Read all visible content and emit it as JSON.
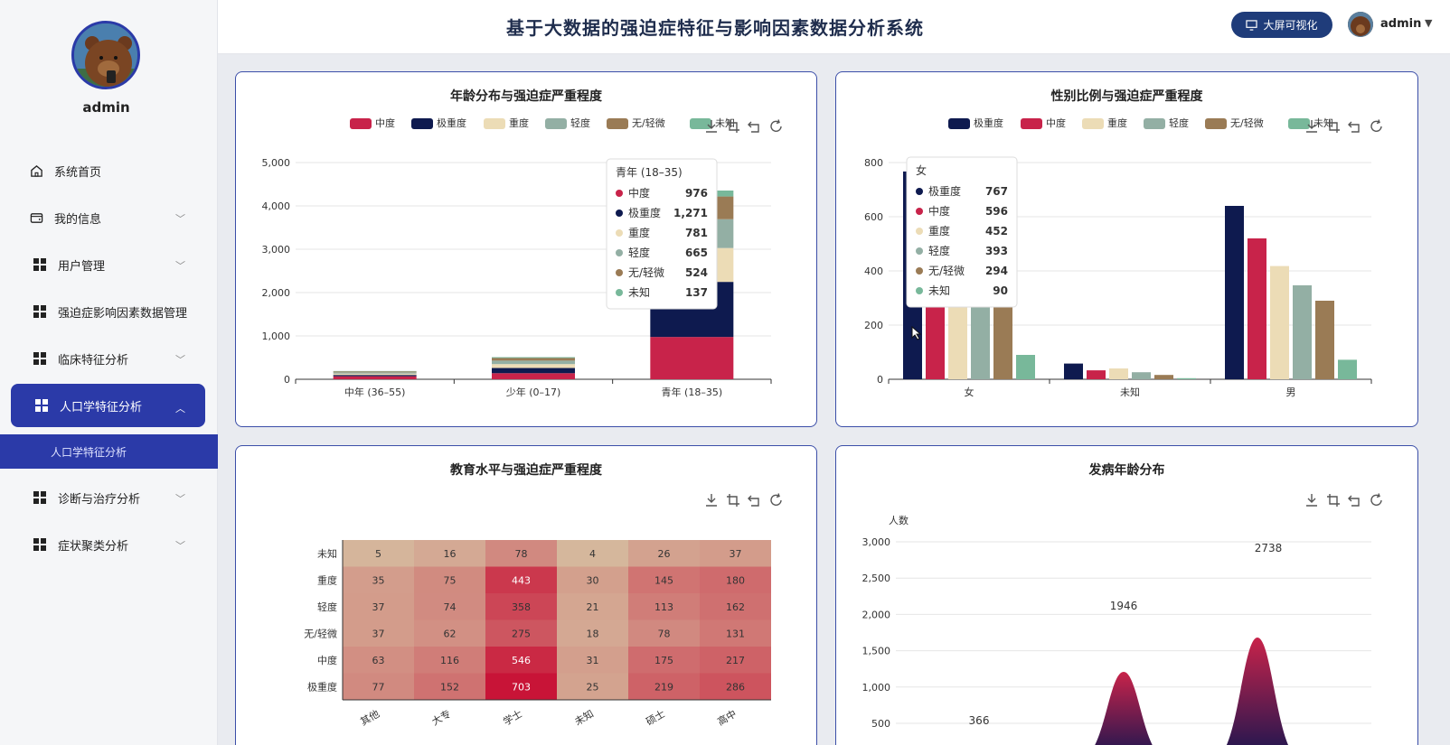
{
  "header": {
    "title": "基于大数据的强迫症特征与影响因素数据分析系统",
    "screen_button": "大屏可视化",
    "user": "admin"
  },
  "sidebar": {
    "user": "admin",
    "items": [
      {
        "label": "系统首页",
        "icon": "home-icon",
        "has_children": false
      },
      {
        "label": "我的信息",
        "icon": "wallet-icon",
        "has_children": true
      },
      {
        "label": "用户管理",
        "icon": "grid-icon",
        "has_children": true
      },
      {
        "label": "强迫症影响因素数据管理",
        "icon": "grid-icon",
        "has_children": false
      },
      {
        "label": "临床特征分析",
        "icon": "grid-icon",
        "has_children": true
      },
      {
        "label": "人口学特征分析",
        "icon": "grid-icon",
        "has_children": true,
        "active": true
      },
      {
        "label": "诊断与治疗分析",
        "icon": "grid-icon",
        "has_children": true
      },
      {
        "label": "症状聚类分析",
        "icon": "grid-icon",
        "has_children": true
      }
    ],
    "submenu_label": "人口学特征分析"
  },
  "colors": {
    "中度": "#c8234a",
    "极重度": "#0e1a4f",
    "重度": "#ecdcb6",
    "轻度": "#93afa4",
    "无/轻微": "#9a7b55",
    "未知": "#78b89a",
    "accent": "#2b3aa8"
  },
  "chart_data": [
    {
      "id": "age",
      "title": "年龄分布与强迫症严重程度",
      "type": "bar",
      "stacked": true,
      "legend": [
        "中度",
        "极重度",
        "重度",
        "轻度",
        "无/轻微",
        "未知"
      ],
      "categories": [
        "中年 (36–55)",
        "少年 (0–17)",
        "青年 (18–35)"
      ],
      "series": [
        {
          "name": "中度",
          "values": [
            70,
            140,
            976
          ]
        },
        {
          "name": "极重度",
          "values": [
            30,
            120,
            1271
          ]
        },
        {
          "name": "重度",
          "values": [
            30,
            90,
            781
          ]
        },
        {
          "name": "轻度",
          "values": [
            30,
            80,
            665
          ]
        },
        {
          "name": "无/轻微",
          "values": [
            20,
            60,
            524
          ]
        },
        {
          "name": "未知",
          "values": [
            10,
            20,
            137
          ]
        }
      ],
      "ylim": [
        0,
        5000
      ],
      "yticks": [
        "0",
        "1,000",
        "2,000",
        "3,000",
        "4,000",
        "5,000"
      ],
      "tooltip": {
        "title": "青年 (18–35)",
        "rows": [
          {
            "name": "中度",
            "value": "976"
          },
          {
            "name": "极重度",
            "value": "1,271"
          },
          {
            "name": "重度",
            "value": "781"
          },
          {
            "name": "轻度",
            "value": "665"
          },
          {
            "name": "无/轻微",
            "value": "524"
          },
          {
            "name": "未知",
            "value": "137"
          }
        ]
      }
    },
    {
      "id": "gender",
      "title": "性别比例与强迫症严重程度",
      "type": "bar",
      "legend": [
        "极重度",
        "中度",
        "重度",
        "轻度",
        "无/轻微",
        "未知"
      ],
      "categories": [
        "女",
        "未知",
        "男"
      ],
      "series": [
        {
          "name": "极重度",
          "values": [
            767,
            58,
            640
          ]
        },
        {
          "name": "中度",
          "values": [
            596,
            33,
            520
          ]
        },
        {
          "name": "重度",
          "values": [
            452,
            40,
            418
          ]
        },
        {
          "name": "轻度",
          "values": [
            393,
            26,
            347
          ]
        },
        {
          "name": "无/轻微",
          "values": [
            294,
            16,
            290
          ]
        },
        {
          "name": "未知",
          "values": [
            90,
            4,
            72
          ]
        }
      ],
      "ylim": [
        0,
        800
      ],
      "yticks": [
        "0",
        "200",
        "400",
        "600",
        "800"
      ],
      "tooltip": {
        "title": "女",
        "rows": [
          {
            "name": "极重度",
            "value": "767"
          },
          {
            "name": "中度",
            "value": "596"
          },
          {
            "name": "重度",
            "value": "452"
          },
          {
            "name": "轻度",
            "value": "393"
          },
          {
            "name": "无/轻微",
            "value": "294"
          },
          {
            "name": "未知",
            "value": "90"
          }
        ]
      }
    },
    {
      "id": "education",
      "title": "教育水平与强迫症严重程度",
      "type": "heatmap",
      "x": [
        "其他",
        "大专",
        "学士",
        "未知",
        "硕士",
        "高中"
      ],
      "y": [
        "未知",
        "重度",
        "轻度",
        "无/轻微",
        "中度",
        "极重度"
      ],
      "values": [
        [
          5,
          16,
          78,
          4,
          26,
          37
        ],
        [
          35,
          75,
          443,
          30,
          145,
          180
        ],
        [
          37,
          74,
          358,
          21,
          113,
          162
        ],
        [
          37,
          62,
          275,
          18,
          78,
          131
        ],
        [
          63,
          116,
          546,
          31,
          175,
          217
        ],
        [
          77,
          152,
          703,
          25,
          219,
          286
        ]
      ],
      "range": [
        0,
        703
      ]
    },
    {
      "id": "onset",
      "title": "发病年龄分布",
      "type": "area",
      "ylabel": "人数",
      "yticks": [
        "500",
        "1,000",
        "1,500",
        "2,000",
        "2,500",
        "3,000"
      ],
      "ylim": [
        0,
        3000
      ],
      "labels": [
        "366",
        "1946",
        "2738"
      ],
      "label_values": [
        366,
        1946,
        2738
      ]
    }
  ]
}
